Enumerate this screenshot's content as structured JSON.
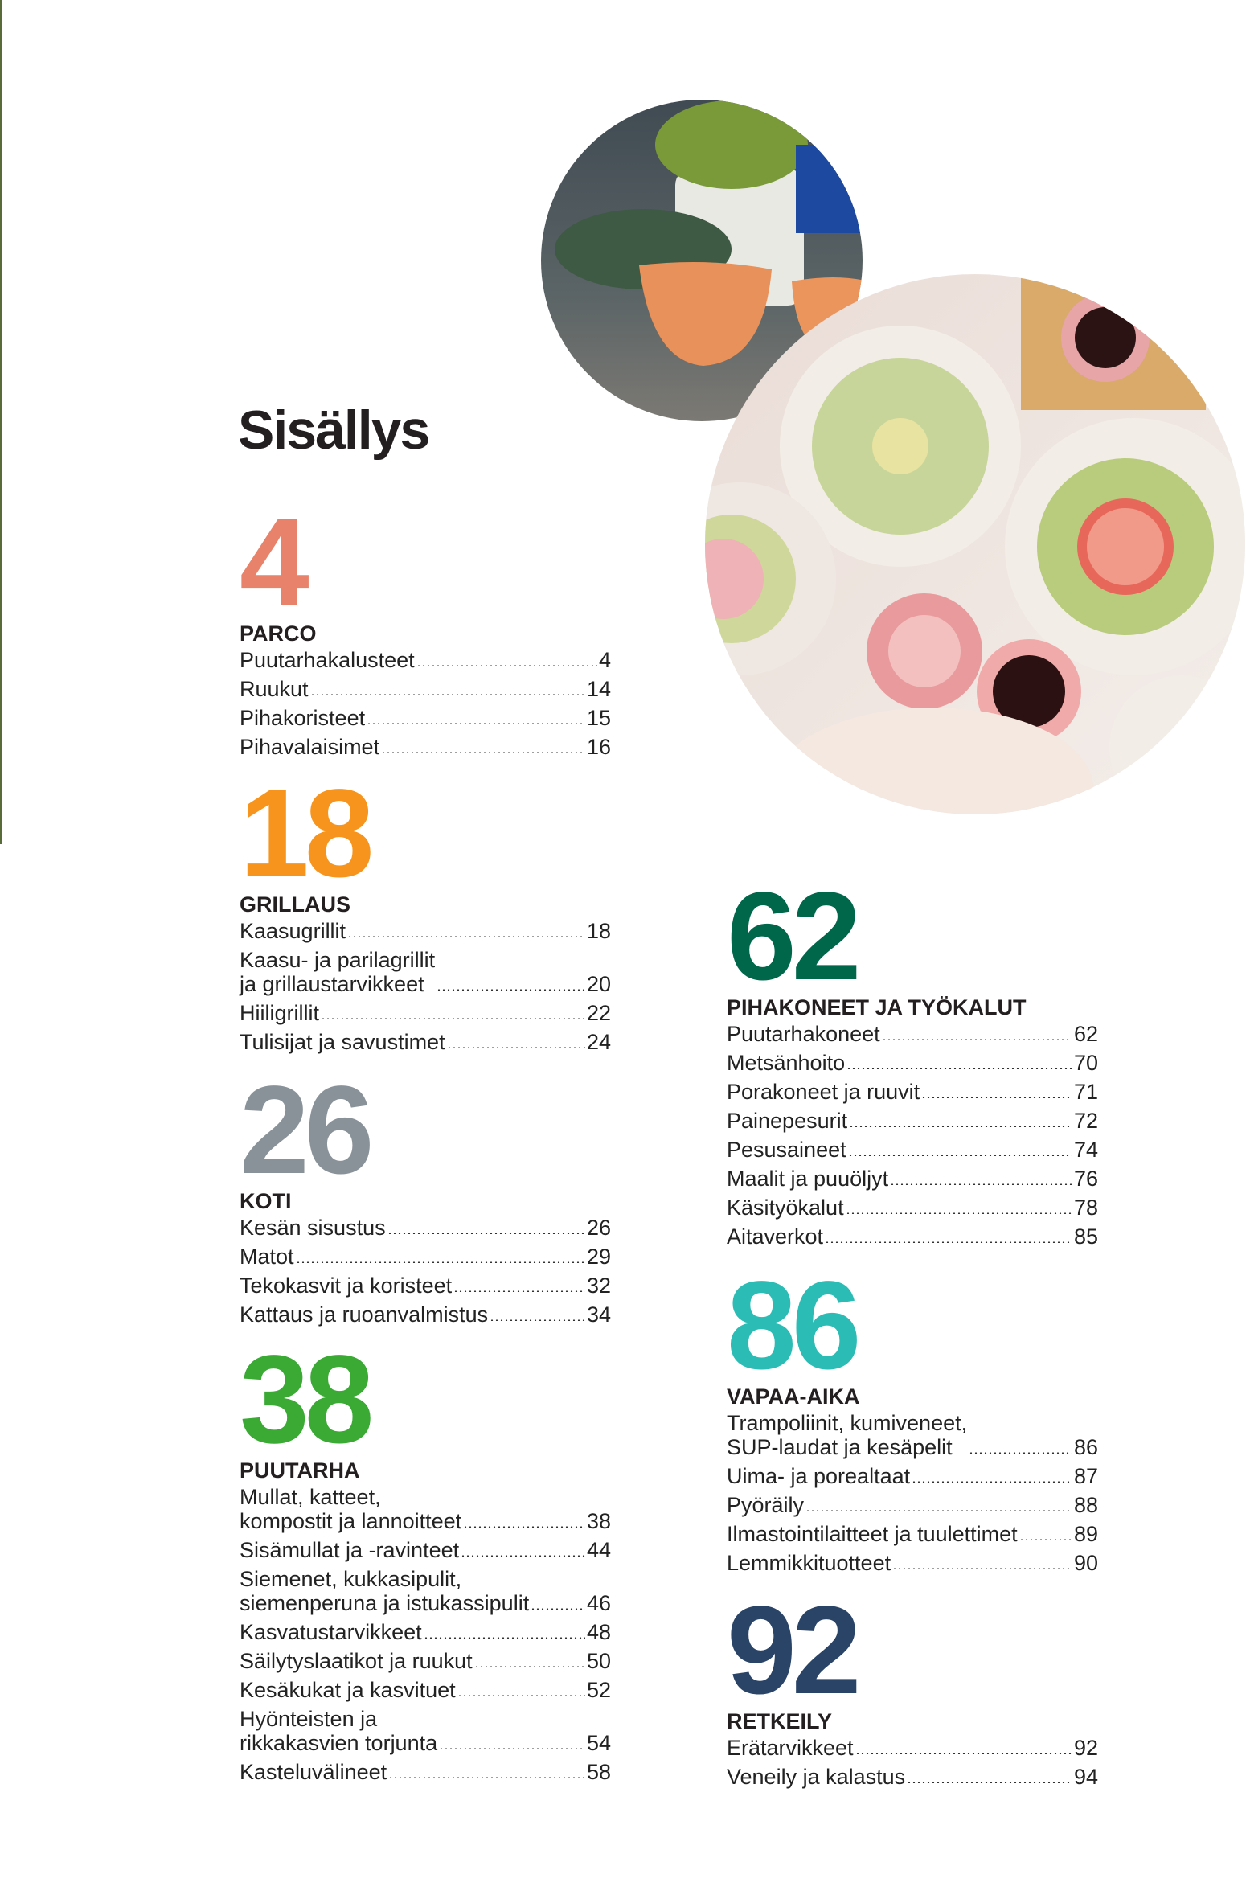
{
  "title": "Sisällys",
  "sections": [
    {
      "number": "4",
      "heading": "PARCO",
      "entries": [
        {
          "lines": [
            "Puutarhakalusteet"
          ],
          "page": "4"
        },
        {
          "lines": [
            "Ruukut"
          ],
          "page": "14"
        },
        {
          "lines": [
            "Pihakoristeet"
          ],
          "page": "15"
        },
        {
          "lines": [
            "Pihavalaisimet"
          ],
          "page": "16"
        }
      ]
    },
    {
      "number": "18",
      "heading": "GRILLAUS",
      "entries": [
        {
          "lines": [
            "Kaasugrillit"
          ],
          "page": "18"
        },
        {
          "lines": [
            "Kaasu- ja parilagrillit",
            "ja grillaustarvikkeet"
          ],
          "page": "20"
        },
        {
          "lines": [
            "Hiiligrillit"
          ],
          "page": "22"
        },
        {
          "lines": [
            "Tulisijat ja savustimet"
          ],
          "page": "24"
        }
      ]
    },
    {
      "number": "26",
      "heading": "KOTI",
      "entries": [
        {
          "lines": [
            "Kesän sisustus"
          ],
          "page": "26"
        },
        {
          "lines": [
            "Matot"
          ],
          "page": "29"
        },
        {
          "lines": [
            "Tekokasvit ja koristeet"
          ],
          "page": "32"
        },
        {
          "lines": [
            "Kattaus ja ruoanvalmistus"
          ],
          "page": "34"
        }
      ]
    },
    {
      "number": "38",
      "heading": "PUUTARHA",
      "entries": [
        {
          "lines": [
            "Mullat, katteet,",
            "kompostit ja lannoitteet"
          ],
          "page": "38"
        },
        {
          "lines": [
            "Sisämullat ja -ravinteet"
          ],
          "page": "44"
        },
        {
          "lines": [
            "Siemenet, kukkasipulit,",
            "siemenperuna ja istukassipulit"
          ],
          "page": "46"
        },
        {
          "lines": [
            "Kasvatustarvikkeet"
          ],
          "page": "48"
        },
        {
          "lines": [
            "Säilytyslaatikot ja ruukut"
          ],
          "page": "50"
        },
        {
          "lines": [
            "Kesäkukat ja kasvituet"
          ],
          "page": "52"
        },
        {
          "lines": [
            "Hyönteisten ja",
            "rikkakasvien torjunta"
          ],
          "page": "54"
        },
        {
          "lines": [
            "Kasteluvälineet"
          ],
          "page": "58"
        }
      ]
    },
    {
      "number": "62",
      "heading": "PIHAKONEET JA TYÖKALUT",
      "entries": [
        {
          "lines": [
            "Puutarhakoneet"
          ],
          "page": "62"
        },
        {
          "lines": [
            "Metsänhoito"
          ],
          "page": "70"
        },
        {
          "lines": [
            "Porakoneet ja ruuvit"
          ],
          "page": "71"
        },
        {
          "lines": [
            "Painepesurit"
          ],
          "page": "72"
        },
        {
          "lines": [
            "Pesusaineet"
          ],
          "page": "74"
        },
        {
          "lines": [
            "Maalit ja puuöljyt"
          ],
          "page": "76"
        },
        {
          "lines": [
            "Käsityökalut"
          ],
          "page": "78"
        },
        {
          "lines": [
            "Aitaverkot"
          ],
          "page": "85"
        }
      ]
    },
    {
      "number": "86",
      "heading": "VAPAA-AIKA",
      "entries": [
        {
          "lines": [
            "Trampoliinit, kumiveneet,",
            "SUP-laudat ja kesäpelit"
          ],
          "page": "86"
        },
        {
          "lines": [
            "Uima- ja porealtaat"
          ],
          "page": "87"
        },
        {
          "lines": [
            "Pyöräily"
          ],
          "page": "88"
        },
        {
          "lines": [
            "Ilmastointilaitteet ja tuulettimet"
          ],
          "page": "89"
        },
        {
          "lines": [
            "Lemmikkituotteet"
          ],
          "page": "90"
        }
      ]
    },
    {
      "number": "92",
      "heading": "RETKEILY",
      "entries": [
        {
          "lines": [
            "Erätarvikkeet"
          ],
          "page": "92"
        },
        {
          "lines": [
            "Veneily ja kalastus"
          ],
          "page": "94"
        }
      ]
    }
  ]
}
